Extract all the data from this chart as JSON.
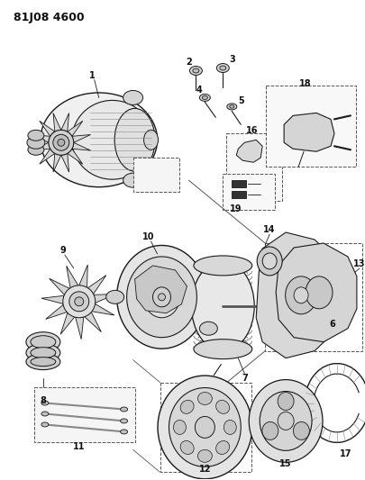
{
  "title": "81J08 4600",
  "bg_color": "#ffffff",
  "fig_width": 4.06,
  "fig_height": 5.33,
  "dpi": 100,
  "line_color": "#1a1a1a",
  "lw": 0.7
}
